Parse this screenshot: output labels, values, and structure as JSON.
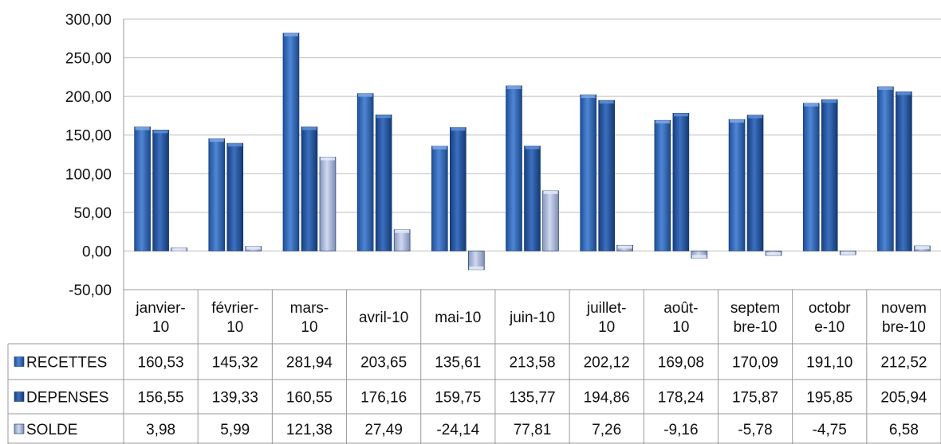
{
  "chart_data": {
    "type": "bar",
    "categories": [
      [
        "janvier-",
        "10"
      ],
      [
        "février-",
        "10"
      ],
      [
        "mars-",
        "10"
      ],
      [
        "avril-10"
      ],
      [
        "mai-10"
      ],
      [
        "juin-10"
      ],
      [
        "juillet-",
        "10"
      ],
      [
        "août-",
        "10"
      ],
      [
        "septem",
        "bre-10"
      ],
      [
        "octobr",
        "e-10"
      ],
      [
        "novem",
        "bre-10"
      ]
    ],
    "series": [
      {
        "name": "RECETTES",
        "color": "#2f63b4",
        "values": [
          160.53,
          145.32,
          281.94,
          203.65,
          135.61,
          213.58,
          202.12,
          169.08,
          170.09,
          191.1,
          212.52
        ],
        "labels": [
          "160,53",
          "145,32",
          "281,94",
          "203,65",
          "135,61",
          "213,58",
          "202,12",
          "169,08",
          "170,09",
          "191,10",
          "212,52"
        ]
      },
      {
        "name": "DEPENSES",
        "color": "#1f4f9a",
        "values": [
          156.55,
          139.33,
          160.55,
          176.16,
          159.75,
          135.77,
          194.86,
          178.24,
          175.87,
          195.85,
          205.94
        ],
        "labels": [
          "156,55",
          "139,33",
          "160,55",
          "176,16",
          "159,75",
          "135,77",
          "194,86",
          "178,24",
          "175,87",
          "195,85",
          "205,94"
        ]
      },
      {
        "name": "SOLDE",
        "color": "#9fb0d4",
        "values": [
          3.98,
          5.99,
          121.38,
          27.49,
          -24.14,
          77.81,
          7.26,
          -9.16,
          -5.78,
          -4.75,
          6.58
        ],
        "labels": [
          "3,98",
          "5,99",
          "121,38",
          "27,49",
          "-24,14",
          "77,81",
          "7,26",
          "-9,16",
          "-5,78",
          "-4,75",
          "6,58"
        ]
      }
    ],
    "y_ticks": [
      "300,00",
      "250,00",
      "200,00",
      "150,00",
      "100,00",
      "50,00",
      "0,00",
      "-50,00"
    ],
    "ylim": [
      -50,
      300
    ],
    "grid": true,
    "legend": "data-table"
  }
}
